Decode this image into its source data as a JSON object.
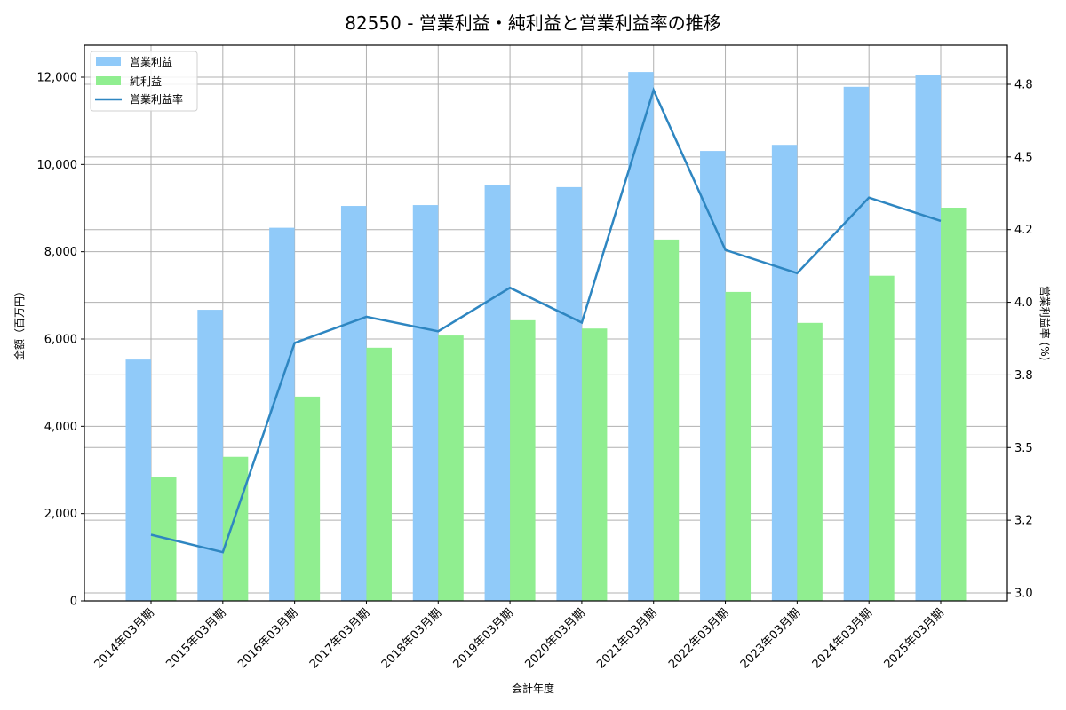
{
  "chart_data": {
    "type": "bar",
    "combo": "bar+line (dual axis)",
    "title": "82550 - 営業利益・純利益と営業利益率の推移",
    "xlabel": "会計年度",
    "ylabel": "金額（百万円）",
    "y2label": "営業利益率 (%)",
    "categories": [
      "2014年03月期",
      "2015年03月期",
      "2016年03月期",
      "2017年03月期",
      "2018年03月期",
      "2019年03月期",
      "2020年03月期",
      "2021年03月期",
      "2022年03月期",
      "2023年03月期",
      "2024年03月期",
      "2025年03月期"
    ],
    "series": [
      {
        "name": "営業利益",
        "type": "bar",
        "axis": "left",
        "color": "#90caf9",
        "values": [
          5530,
          6670,
          8550,
          9050,
          9070,
          9520,
          9480,
          12120,
          10310,
          10450,
          11780,
          12060
        ]
      },
      {
        "name": "純利益",
        "type": "bar",
        "axis": "left",
        "color": "#90ee90",
        "values": [
          2830,
          3300,
          4680,
          5800,
          6080,
          6430,
          6240,
          8280,
          7080,
          6370,
          7450,
          9010
        ]
      },
      {
        "name": "営業利益率",
        "type": "line",
        "axis": "right",
        "color": "#2e86c1",
        "values": [
          3.2,
          3.14,
          3.86,
          3.95,
          3.9,
          4.05,
          3.93,
          4.73,
          4.18,
          4.1,
          4.36,
          4.28
        ]
      }
    ],
    "ylim": [
      0,
      12700
    ],
    "y_ticks": [
      0,
      2000,
      4000,
      6000,
      8000,
      10000,
      12000
    ],
    "y_tick_labels": [
      "0",
      "2,000",
      "4,000",
      "6,000",
      "8,000",
      "10,000",
      "12,000"
    ],
    "y2lim": [
      2.97,
      4.91
    ],
    "y2_ticks": [
      3.0,
      3.25,
      3.5,
      3.75,
      4.0,
      4.25,
      4.5,
      4.75
    ],
    "y2_tick_labels": [
      "3.0",
      "3.2",
      "3.5",
      "3.8",
      "4.0",
      "4.2",
      "4.5",
      "4.8"
    ],
    "grid": true,
    "legend_position": "upper left",
    "legend": [
      "営業利益",
      "純利益",
      "営業利益率"
    ]
  }
}
